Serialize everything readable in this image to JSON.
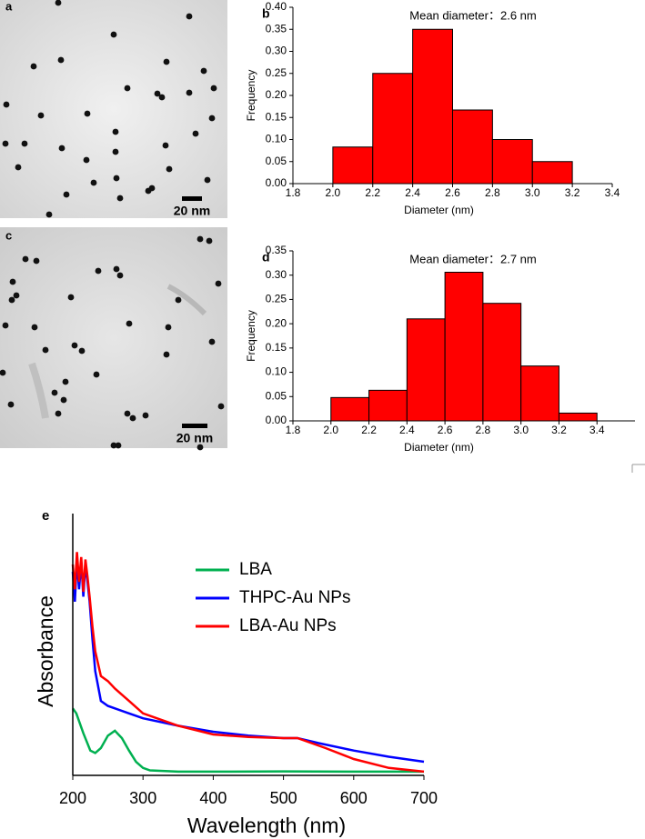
{
  "images": [
    {
      "panel_label": "a",
      "scale_bar": "20 nm"
    },
    {
      "panel_label": "c",
      "scale_bar": "20 nm"
    }
  ],
  "chart_data": [
    {
      "type": "histogram",
      "panel_label": "b",
      "annotation": "Mean diameter：2.6 nm",
      "xlabel": "Diameter (nm)",
      "ylabel": "Frequency",
      "color": "#ff0000",
      "bins": [
        2.0,
        2.2,
        2.4,
        2.6,
        2.8,
        3.0,
        3.2
      ],
      "values": [
        0.083,
        0.25,
        0.35,
        0.167,
        0.1,
        0.05
      ],
      "xlim": [
        1.8,
        3.4
      ],
      "xticks": [
        1.8,
        {
          "value": 2,
          "label": "2.0"
        },
        2.2,
        2.4,
        2.6,
        2.8,
        {
          "value": 3,
          "label": "3.0"
        },
        3.2,
        3.4
      ],
      "ylim": [
        0,
        0.4
      ],
      "yticks": [
        {
          "value": 0,
          "label": "0.00"
        },
        {
          "value": 0.05,
          "label": "0.05"
        },
        {
          "value": 0.1,
          "label": "0.10"
        },
        {
          "value": 0.15,
          "label": "0.15"
        },
        {
          "value": 0.2,
          "label": "0.20"
        },
        {
          "value": 0.25,
          "label": "0.25"
        },
        {
          "value": 0.3,
          "label": "0.30"
        },
        {
          "value": 0.35,
          "label": "0.35"
        },
        {
          "value": 0.4,
          "label": "0.40"
        }
      ]
    },
    {
      "type": "histogram",
      "panel_label": "d",
      "annotation": "Mean diameter：2.7 nm",
      "xlabel": "Diameter (nm)",
      "ylabel": "Frequency",
      "color": "#ff0000",
      "bins": [
        2.0,
        2.2,
        2.4,
        2.6,
        2.8,
        3.0,
        3.2,
        3.4
      ],
      "values": [
        0.048,
        0.063,
        0.21,
        0.306,
        0.242,
        0.113,
        0.016
      ],
      "xlim": [
        1.8,
        3.6
      ],
      "xticks": [
        1.8,
        {
          "value": 2,
          "label": "2.0"
        },
        2.2,
        2.4,
        2.6,
        2.8,
        {
          "value": 3,
          "label": "3.0"
        },
        3.2,
        3.4
      ],
      "ylim": [
        0,
        0.35
      ],
      "yticks": [
        {
          "value": 0,
          "label": "0.00"
        },
        {
          "value": 0.05,
          "label": "0.05"
        },
        {
          "value": 0.1,
          "label": "0.10"
        },
        {
          "value": 0.15,
          "label": "0.15"
        },
        {
          "value": 0.2,
          "label": "0.20"
        },
        {
          "value": 0.25,
          "label": "0.25"
        },
        {
          "value": 0.3,
          "label": "0.30"
        },
        {
          "value": 0.35,
          "label": "0.35"
        }
      ]
    },
    {
      "type": "line",
      "panel_label": "e",
      "xlabel": "Wavelength (nm)",
      "ylabel": "Absorbance",
      "xlim": [
        200,
        700
      ],
      "xticks": [
        200,
        300,
        400,
        500,
        600,
        700
      ],
      "ylim": [
        0,
        1
      ],
      "series": [
        {
          "name": "LBA",
          "color": "#00b050",
          "x": [
            200,
            205,
            215,
            225,
            232,
            240,
            250,
            260,
            270,
            280,
            290,
            300,
            310,
            350,
            400,
            500,
            600,
            700
          ],
          "values": [
            0.27,
            0.25,
            0.17,
            0.1,
            0.09,
            0.11,
            0.16,
            0.18,
            0.15,
            0.1,
            0.055,
            0.03,
            0.02,
            0.015,
            0.015,
            0.016,
            0.015,
            0.015
          ]
        },
        {
          "name": "THPC-Au NPs",
          "color": "#0000ff",
          "x": [
            200,
            203,
            206,
            209,
            212,
            215,
            218,
            221,
            224,
            228,
            232,
            240,
            250,
            260,
            280,
            300,
            350,
            400,
            450,
            500,
            520,
            550,
            600,
            650,
            700
          ],
          "values": [
            0.82,
            0.7,
            0.87,
            0.75,
            0.86,
            0.72,
            0.85,
            0.78,
            0.7,
            0.55,
            0.42,
            0.3,
            0.28,
            0.27,
            0.25,
            0.23,
            0.2,
            0.176,
            0.16,
            0.15,
            0.15,
            0.13,
            0.1,
            0.075,
            0.055
          ]
        },
        {
          "name": "LBA-Au NPs",
          "color": "#ff0000",
          "x": [
            200,
            203,
            206,
            209,
            212,
            215,
            218,
            221,
            224,
            228,
            232,
            240,
            250,
            260,
            280,
            300,
            350,
            400,
            450,
            500,
            520,
            560,
            600,
            650,
            700
          ],
          "values": [
            0.85,
            0.75,
            0.9,
            0.78,
            0.88,
            0.74,
            0.87,
            0.8,
            0.72,
            0.6,
            0.5,
            0.4,
            0.38,
            0.35,
            0.3,
            0.25,
            0.2,
            0.165,
            0.155,
            0.15,
            0.15,
            0.11,
            0.066,
            0.03,
            0.015
          ]
        }
      ]
    }
  ]
}
